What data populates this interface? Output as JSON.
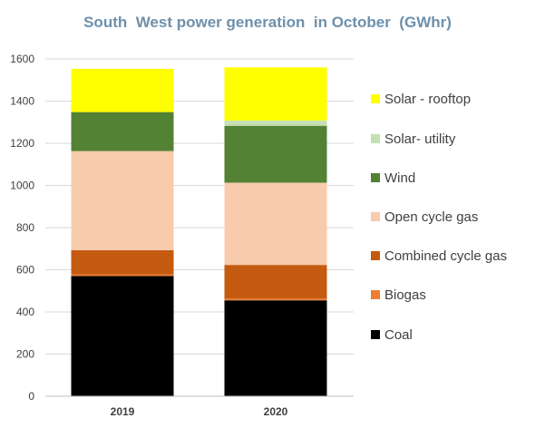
{
  "chart_data": {
    "type": "bar",
    "stacked": true,
    "title": "South  West power generation  in October  (GWhr)",
    "xlabel": "",
    "ylabel": "",
    "categories": [
      "2019",
      "2020"
    ],
    "ylim": [
      0,
      1600
    ],
    "yticks": [
      0,
      200,
      400,
      600,
      800,
      1000,
      1200,
      1400,
      1600
    ],
    "grid": true,
    "legend_position": "right",
    "series": [
      {
        "name": "Coal",
        "color": "#000000",
        "values": [
          570,
          455
        ]
      },
      {
        "name": "Biogas",
        "color": "#ed7d31",
        "values": [
          8,
          8
        ]
      },
      {
        "name": "Combined cycle gas",
        "color": "#c55a11",
        "values": [
          115,
          160
        ]
      },
      {
        "name": "Open cycle gas",
        "color": "#f8cbad",
        "values": [
          470,
          390
        ]
      },
      {
        "name": "Wind",
        "color": "#548235",
        "values": [
          185,
          270
        ]
      },
      {
        "name": "Solar- utility",
        "color": "#c5e0b4",
        "values": [
          0,
          25
        ]
      },
      {
        "name": "Solar - rooftop",
        "color": "#ffff00",
        "values": [
          205,
          252
        ]
      }
    ]
  }
}
